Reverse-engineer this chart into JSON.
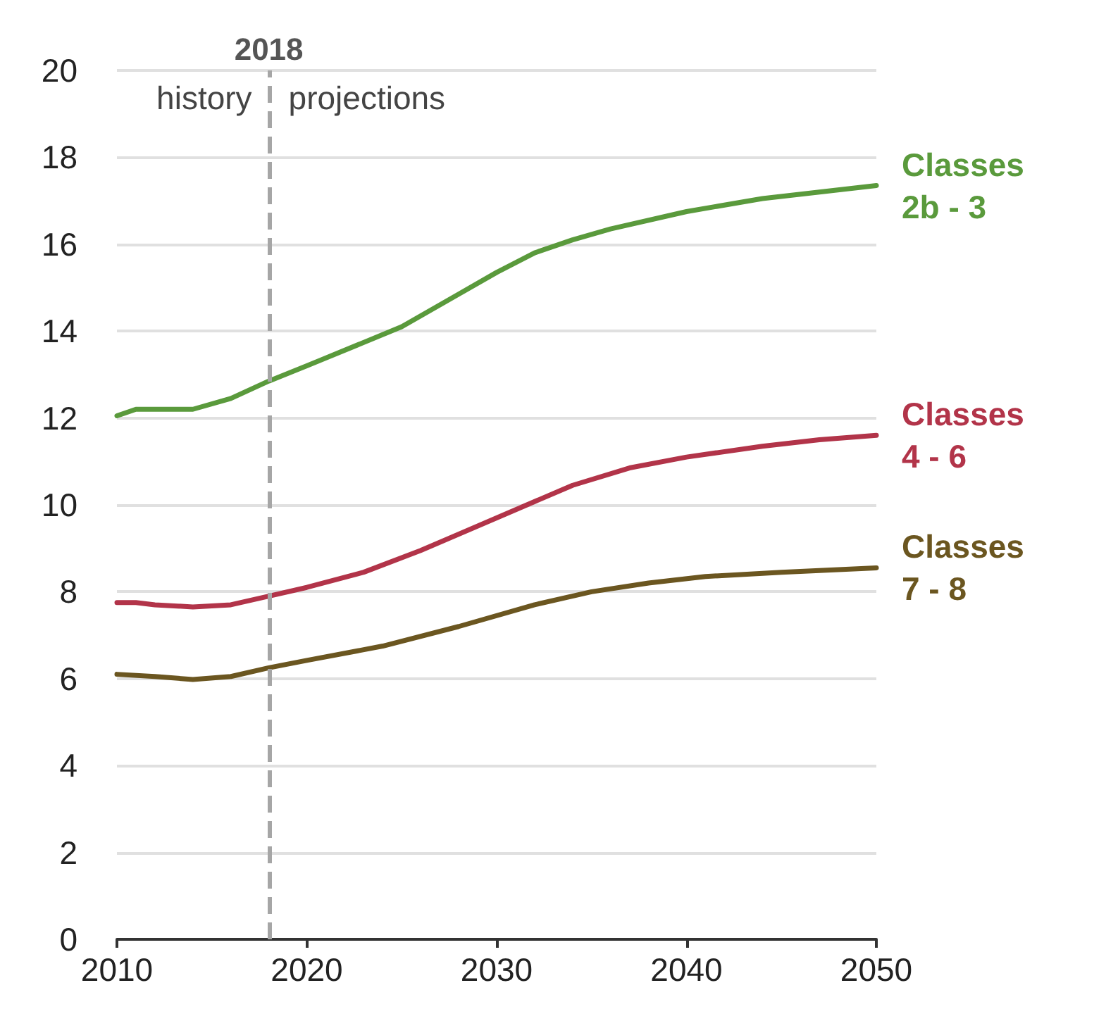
{
  "chart_data": {
    "type": "line",
    "annotations": [
      "history",
      "projections"
    ],
    "xlim": [
      2010,
      2050
    ],
    "xticks": [
      2010,
      2020,
      2030,
      2040,
      2050
    ],
    "ylim": [
      0,
      20
    ],
    "yticks": [
      0,
      2,
      4,
      6,
      8,
      10,
      12,
      14,
      16,
      18,
      20
    ],
    "grid": "y",
    "marker": "none",
    "line_style": "solid",
    "legend": false,
    "ref_lines": [
      {
        "axis": "x",
        "value": 2018,
        "label": "2018",
        "color": "#a6a6a6",
        "line_style": "dashed"
      }
    ],
    "series": [
      {
        "name": "Classes 2b - 3",
        "color": "#5a9a3c",
        "x": [
          2010,
          2011,
          2014,
          2016,
          2018,
          2020,
          2025,
          2028,
          2030,
          2032,
          2034,
          2036,
          2040,
          2044,
          2047,
          2050
        ],
        "values": [
          12.05,
          12.2,
          12.2,
          12.45,
          12.85,
          13.2,
          14.1,
          14.85,
          15.35,
          15.8,
          16.1,
          16.35,
          16.75,
          17.05,
          17.2,
          17.35
        ]
      },
      {
        "name": "Classes 4 - 6",
        "color": "#b23449",
        "x": [
          2010,
          2011,
          2012,
          2014,
          2016,
          2018,
          2020,
          2023,
          2026,
          2030,
          2034,
          2037,
          2040,
          2044,
          2047,
          2050
        ],
        "values": [
          7.75,
          7.75,
          7.7,
          7.65,
          7.7,
          7.9,
          8.1,
          8.45,
          8.95,
          9.7,
          10.45,
          10.85,
          11.1,
          11.35,
          11.5,
          11.6
        ]
      },
      {
        "name": "Classes 7 - 8",
        "color": "#6b5620",
        "x": [
          2010,
          2012,
          2014,
          2016,
          2018,
          2020,
          2024,
          2028,
          2032,
          2035,
          2038,
          2041,
          2045,
          2050
        ],
        "values": [
          6.1,
          6.05,
          5.98,
          6.05,
          6.25,
          6.42,
          6.75,
          7.2,
          7.7,
          8.0,
          8.2,
          8.35,
          8.45,
          8.55
        ]
      }
    ]
  }
}
